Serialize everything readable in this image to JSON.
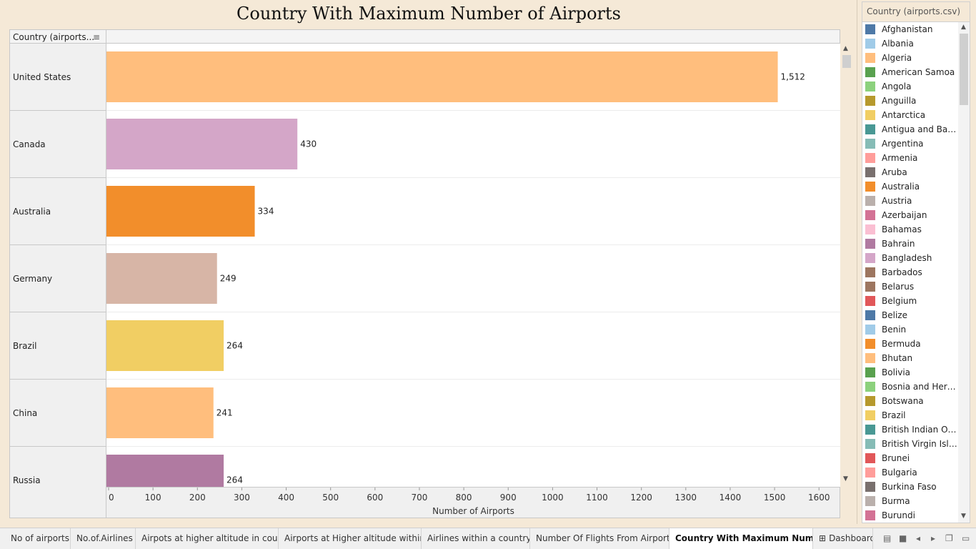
{
  "chart_data": {
    "type": "bar",
    "orientation": "horizontal",
    "title": "Country With Maximum Number of Airports",
    "row_header": "Country (airports...",
    "categories": [
      "United States",
      "Canada",
      "Australia",
      "Germany",
      "Brazil",
      "China",
      "Russia"
    ],
    "values": [
      1512,
      430,
      334,
      249,
      264,
      241,
      264
    ],
    "value_labels": [
      "1,512",
      "430",
      "334",
      "249",
      "264",
      "241",
      "264"
    ],
    "colors": [
      "#ffbe7d",
      "#d4a6c8",
      "#f28e2b",
      "#d7b5a6",
      "#f1ce63",
      "#ffbe7d",
      "#b07aa1"
    ],
    "xlabel": "Number of Airports",
    "xlim": [
      0,
      1650
    ],
    "ticks": [
      "0",
      "100",
      "200",
      "300",
      "400",
      "500",
      "600",
      "700",
      "800",
      "900",
      "1000",
      "1100",
      "1200",
      "1300",
      "1400",
      "1500",
      "1600"
    ]
  },
  "legend": {
    "title": "Country (airports.csv)",
    "items": [
      {
        "label": "Afghanistan",
        "color": "#4e79a7"
      },
      {
        "label": "Albania",
        "color": "#a0cbe8"
      },
      {
        "label": "Algeria",
        "color": "#ffbe7d"
      },
      {
        "label": "American Samoa",
        "color": "#59a14f"
      },
      {
        "label": "Angola",
        "color": "#8cd17d"
      },
      {
        "label": "Anguilla",
        "color": "#b6992d"
      },
      {
        "label": "Antarctica",
        "color": "#f1ce63"
      },
      {
        "label": "Antigua and Barbu..",
        "color": "#499894"
      },
      {
        "label": "Argentina",
        "color": "#86bcb6"
      },
      {
        "label": "Armenia",
        "color": "#ff9d9a"
      },
      {
        "label": "Aruba",
        "color": "#79706e"
      },
      {
        "label": "Australia",
        "color": "#f28e2b"
      },
      {
        "label": "Austria",
        "color": "#bab0ac"
      },
      {
        "label": "Azerbaijan",
        "color": "#d37295"
      },
      {
        "label": "Bahamas",
        "color": "#fabfd2"
      },
      {
        "label": "Bahrain",
        "color": "#b07aa1"
      },
      {
        "label": "Bangladesh",
        "color": "#d4a6c8"
      },
      {
        "label": "Barbados",
        "color": "#9d7660"
      },
      {
        "label": "Belarus",
        "color": "#9d7660"
      },
      {
        "label": "Belgium",
        "color": "#e15759"
      },
      {
        "label": "Belize",
        "color": "#4e79a7"
      },
      {
        "label": "Benin",
        "color": "#a0cbe8"
      },
      {
        "label": "Bermuda",
        "color": "#f28e2b"
      },
      {
        "label": "Bhutan",
        "color": "#ffbe7d"
      },
      {
        "label": "Bolivia",
        "color": "#59a14f"
      },
      {
        "label": "Bosnia and Herzeg..",
        "color": "#8cd17d"
      },
      {
        "label": "Botswana",
        "color": "#b6992d"
      },
      {
        "label": "Brazil",
        "color": "#f1ce63"
      },
      {
        "label": "British Indian Ocea..",
        "color": "#499894"
      },
      {
        "label": "British Virgin Islands",
        "color": "#86bcb6"
      },
      {
        "label": "Brunei",
        "color": "#e15759"
      },
      {
        "label": "Bulgaria",
        "color": "#ff9d9a"
      },
      {
        "label": "Burkina Faso",
        "color": "#79706e"
      },
      {
        "label": "Burma",
        "color": "#bab0ac"
      },
      {
        "label": "Burundi",
        "color": "#d37295"
      }
    ]
  },
  "tabs": [
    {
      "label": "No of airports",
      "active": false
    },
    {
      "label": "No.of.Airlines",
      "active": false
    },
    {
      "label": "Airpots at higher altitude in coun...",
      "active": false
    },
    {
      "label": "Airports at Higher altitude within...",
      "active": false
    },
    {
      "label": "Airlines within a country",
      "active": false
    },
    {
      "label": "Number Of Flights From Airport",
      "active": false
    },
    {
      "label": "Country With Maximum Numb...",
      "active": true
    },
    {
      "label": "Dashboard",
      "active": false
    }
  ],
  "icons": {
    "sort": "sort-descending-icon",
    "dashboard_tab": "dashboard-grid-icon",
    "nav": [
      "show-filmstrip-icon",
      "show-tabs-icon",
      "previous-sheet-icon",
      "next-sheet-icon",
      "fit-icon",
      "presentation-icon"
    ]
  }
}
